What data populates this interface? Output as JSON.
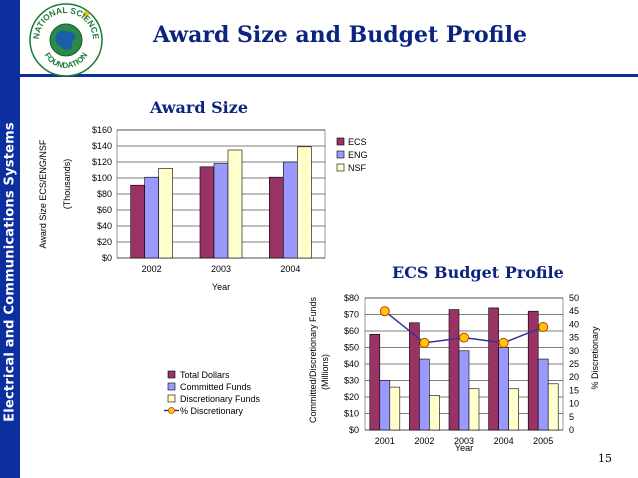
{
  "sidebar": {
    "label": "Electrical and Communications Systems"
  },
  "logo": {
    "text_top": "NATIONAL SCIENCE",
    "text_bottom": "FOUNDATION"
  },
  "header": {
    "title": "Award Size and Budget Profile"
  },
  "page_number": "15",
  "colors": {
    "accent": "#0c2fa0",
    "title": "#0c2380",
    "ecs": "#993366",
    "eng": "#9999ff",
    "nsf": "#ffffcc",
    "marker": "#ffcc00",
    "line": "#333399"
  },
  "chart_data": [
    {
      "type": "bar",
      "title": "Award  Size",
      "categories": [
        "2002",
        "2003",
        "2004"
      ],
      "series": [
        {
          "name": "ECS",
          "values": [
            91,
            114,
            101
          ]
        },
        {
          "name": "ENG",
          "values": [
            101,
            118,
            120
          ]
        },
        {
          "name": "NSF",
          "values": [
            112,
            135,
            139
          ]
        }
      ],
      "xlabel": "Year",
      "ylabel": "Award Size ECS/ENG/NSF",
      "ylabel2": "(Thousands)",
      "ylim": [
        0,
        160
      ],
      "yticks": [
        "$0",
        "$20",
        "$40",
        "$60",
        "$80",
        "$100",
        "$120",
        "$140",
        "$160"
      ],
      "legend": [
        "ECS",
        "ENG",
        "NSF"
      ],
      "legend_position": "top-right",
      "grid": true
    },
    {
      "type": "bar+line",
      "title": "ECS Budget Profile",
      "categories": [
        "2001",
        "2002",
        "2003",
        "2004",
        "2005"
      ],
      "series": [
        {
          "name": "Total  Dollars",
          "values": [
            58,
            65,
            73,
            74,
            72
          ]
        },
        {
          "name": "Committed Funds",
          "values": [
            30,
            43,
            48,
            50,
            43
          ]
        },
        {
          "name": "Discretionary Funds",
          "values": [
            26,
            21,
            25,
            25,
            28
          ]
        }
      ],
      "line_series": {
        "name": "% Discretionary",
        "values": [
          45,
          33,
          35,
          33,
          39
        ]
      },
      "xlabel": "Year",
      "ylabel": "Committed/Discretionary Funds",
      "ylabel2": "(Millions)",
      "y2label": "% Discretionary",
      "ylim": [
        0,
        80
      ],
      "y2lim": [
        0,
        50
      ],
      "yticks": [
        "$0",
        "$10",
        "$20",
        "$30",
        "$40",
        "$50",
        "$60",
        "$70",
        "$80"
      ],
      "y2ticks": [
        "0",
        "5",
        "10",
        "15",
        "20",
        "25",
        "30",
        "35",
        "40",
        "45",
        "50"
      ],
      "legend": [
        "Total  Dollars",
        "Committed Funds",
        "Discretionary Funds",
        "% Discretionary"
      ],
      "legend_position": "left",
      "grid": true
    }
  ]
}
